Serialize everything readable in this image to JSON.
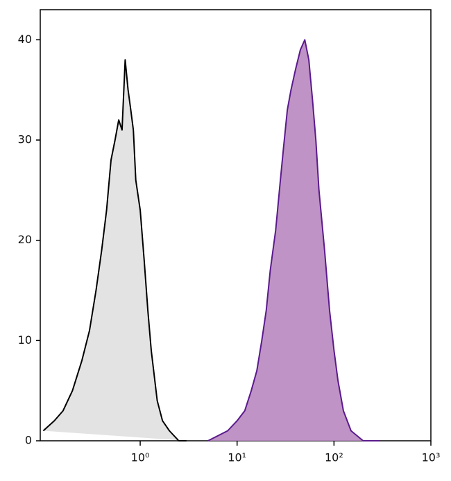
{
  "chart_data": {
    "type": "histogram-overlay",
    "xlim": [
      0.093,
      1000
    ],
    "ylim": [
      0,
      43
    ],
    "xscale": "log",
    "xticks": [
      {
        "value": 1,
        "label": "10⁰"
      },
      {
        "value": 10,
        "label": "10¹"
      },
      {
        "value": 100,
        "label": "10²"
      },
      {
        "value": 1000,
        "label": "10³"
      }
    ],
    "yticks": [
      0,
      10,
      20,
      30,
      40
    ],
    "series": [
      {
        "color": "#000000",
        "fill": "#e0e0e0",
        "x": [
          0.1,
          0.13,
          0.16,
          0.2,
          0.25,
          0.3,
          0.35,
          0.4,
          0.45,
          0.5,
          0.55,
          0.6,
          0.65,
          0.7,
          0.75,
          0.8,
          0.85,
          0.9,
          1.0,
          1.1,
          1.2,
          1.3,
          1.5,
          1.7,
          2,
          2.5,
          3
        ],
        "values": [
          1,
          2,
          3,
          5,
          8,
          11,
          15,
          19,
          23,
          28,
          30,
          32,
          31,
          38,
          35,
          33,
          31,
          26,
          23,
          18,
          13,
          9,
          4,
          2,
          1,
          0,
          0
        ]
      },
      {
        "color": "#5a1a8c",
        "fill": "#b887c0",
        "x": [
          5,
          8,
          10,
          12,
          14,
          16,
          18,
          20,
          22,
          25,
          28,
          30,
          33,
          36,
          40,
          45,
          50,
          55,
          60,
          65,
          70,
          80,
          90,
          100,
          110,
          125,
          150,
          200,
          300
        ],
        "values": [
          0,
          1,
          2,
          3,
          5,
          7,
          10,
          13,
          17,
          21,
          26,
          29,
          33,
          35,
          37,
          39,
          40,
          38,
          34,
          30,
          25,
          19,
          13,
          9,
          6,
          3,
          1,
          0,
          0
        ]
      }
    ]
  }
}
